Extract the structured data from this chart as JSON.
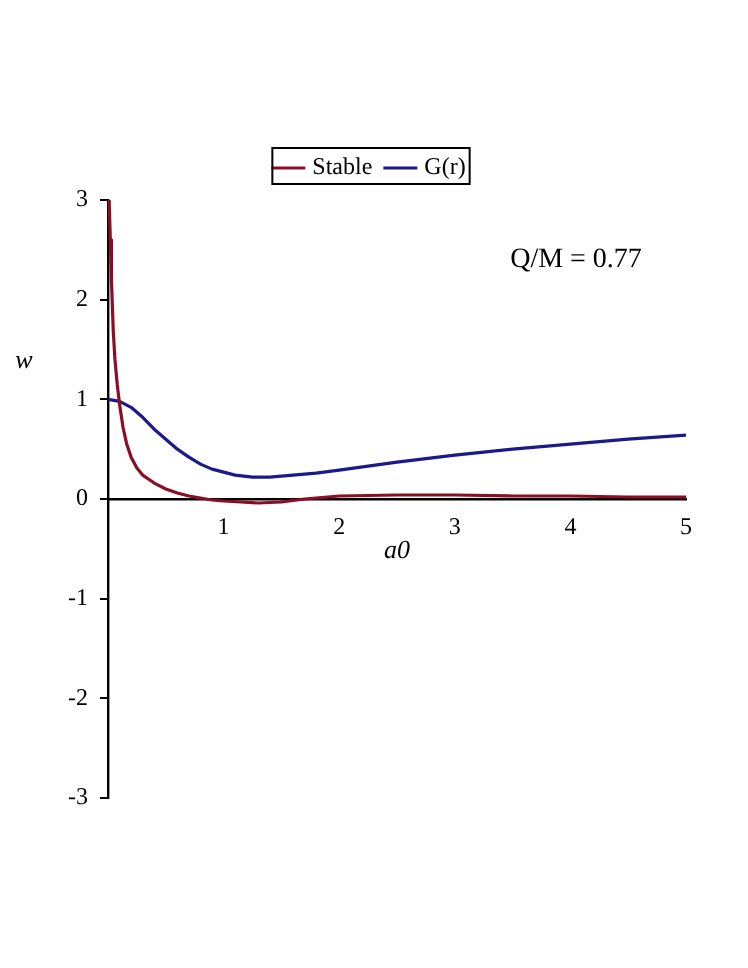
{
  "chart_data": {
    "type": "line",
    "xlabel": "a0",
    "ylabel": "w",
    "annotations": [
      "Q/M = 0.77"
    ],
    "legend": "top",
    "grid": false,
    "marker": "none",
    "xlim": [
      0,
      5
    ],
    "ylim": [
      -3,
      3
    ],
    "xticks": [
      1,
      2,
      3,
      4,
      5
    ],
    "yticks": [
      -3,
      -2,
      -1,
      0,
      1,
      2,
      3
    ],
    "series": [
      {
        "name": "Stable",
        "color": "#8b0f24",
        "x": [
          0.01,
          0.02,
          0.03,
          0.045,
          0.06,
          0.08,
          0.1,
          0.13,
          0.16,
          0.2,
          0.25,
          0.3,
          0.4,
          0.5,
          0.6,
          0.7,
          0.8,
          0.9,
          1.0,
          1.15,
          1.3,
          1.5,
          1.7,
          2.0,
          2.5,
          3.0,
          3.5,
          4.0,
          4.5,
          5.0
        ],
        "values": [
          3,
          2.6,
          2.2,
          1.7,
          1.4,
          1.15,
          0.95,
          0.72,
          0.56,
          0.42,
          0.31,
          0.24,
          0.16,
          0.1,
          0.06,
          0.03,
          0.01,
          -0.01,
          -0.02,
          -0.03,
          -0.04,
          -0.03,
          0,
          0.03,
          0.04,
          0.04,
          0.03,
          0.03,
          0.02,
          0.02
        ]
      },
      {
        "name": "G(r)",
        "color": "#1c1a8a",
        "x": [
          0,
          0.1,
          0.2,
          0.3,
          0.4,
          0.5,
          0.6,
          0.7,
          0.8,
          0.9,
          1.0,
          1.1,
          1.25,
          1.4,
          1.6,
          1.8,
          2.0,
          2.5,
          3.0,
          3.5,
          4.0,
          4.5,
          5.0
        ],
        "values": [
          1,
          0.98,
          0.92,
          0.82,
          0.7,
          0.6,
          0.5,
          0.42,
          0.35,
          0.3,
          0.27,
          0.24,
          0.22,
          0.22,
          0.24,
          0.26,
          0.29,
          0.37,
          0.44,
          0.5,
          0.55,
          0.6,
          0.64
        ]
      }
    ]
  }
}
